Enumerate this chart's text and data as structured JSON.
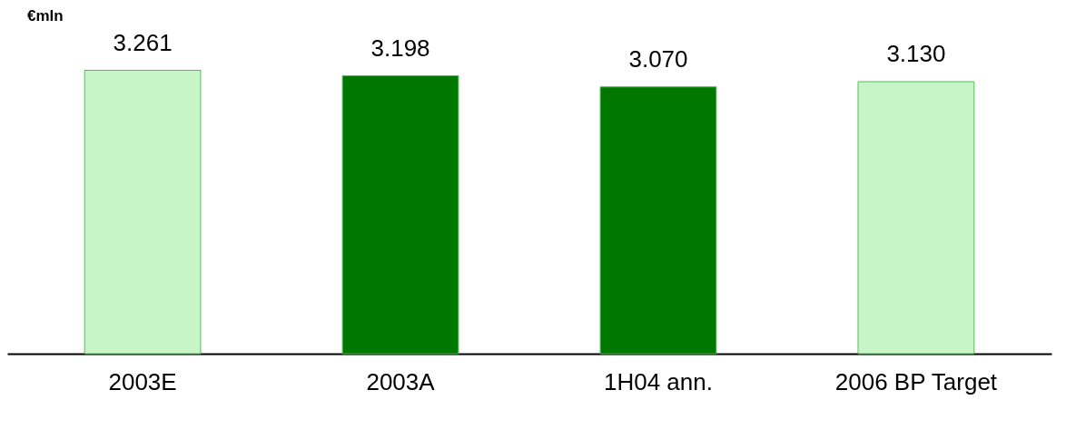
{
  "chart_data": {
    "type": "bar",
    "ylabel": "€mln",
    "categories": [
      "2003E",
      "2003A",
      "1H04 ann.",
      "2006 BP Target"
    ],
    "values": [
      3.261,
      3.198,
      3.07,
      3.13
    ],
    "value_labels": [
      "3.261",
      "3.198",
      "3.070",
      "3.130"
    ],
    "colors": [
      "#c8f5c8",
      "#007800",
      "#007800",
      "#c8f5c8"
    ],
    "grid": false
  }
}
